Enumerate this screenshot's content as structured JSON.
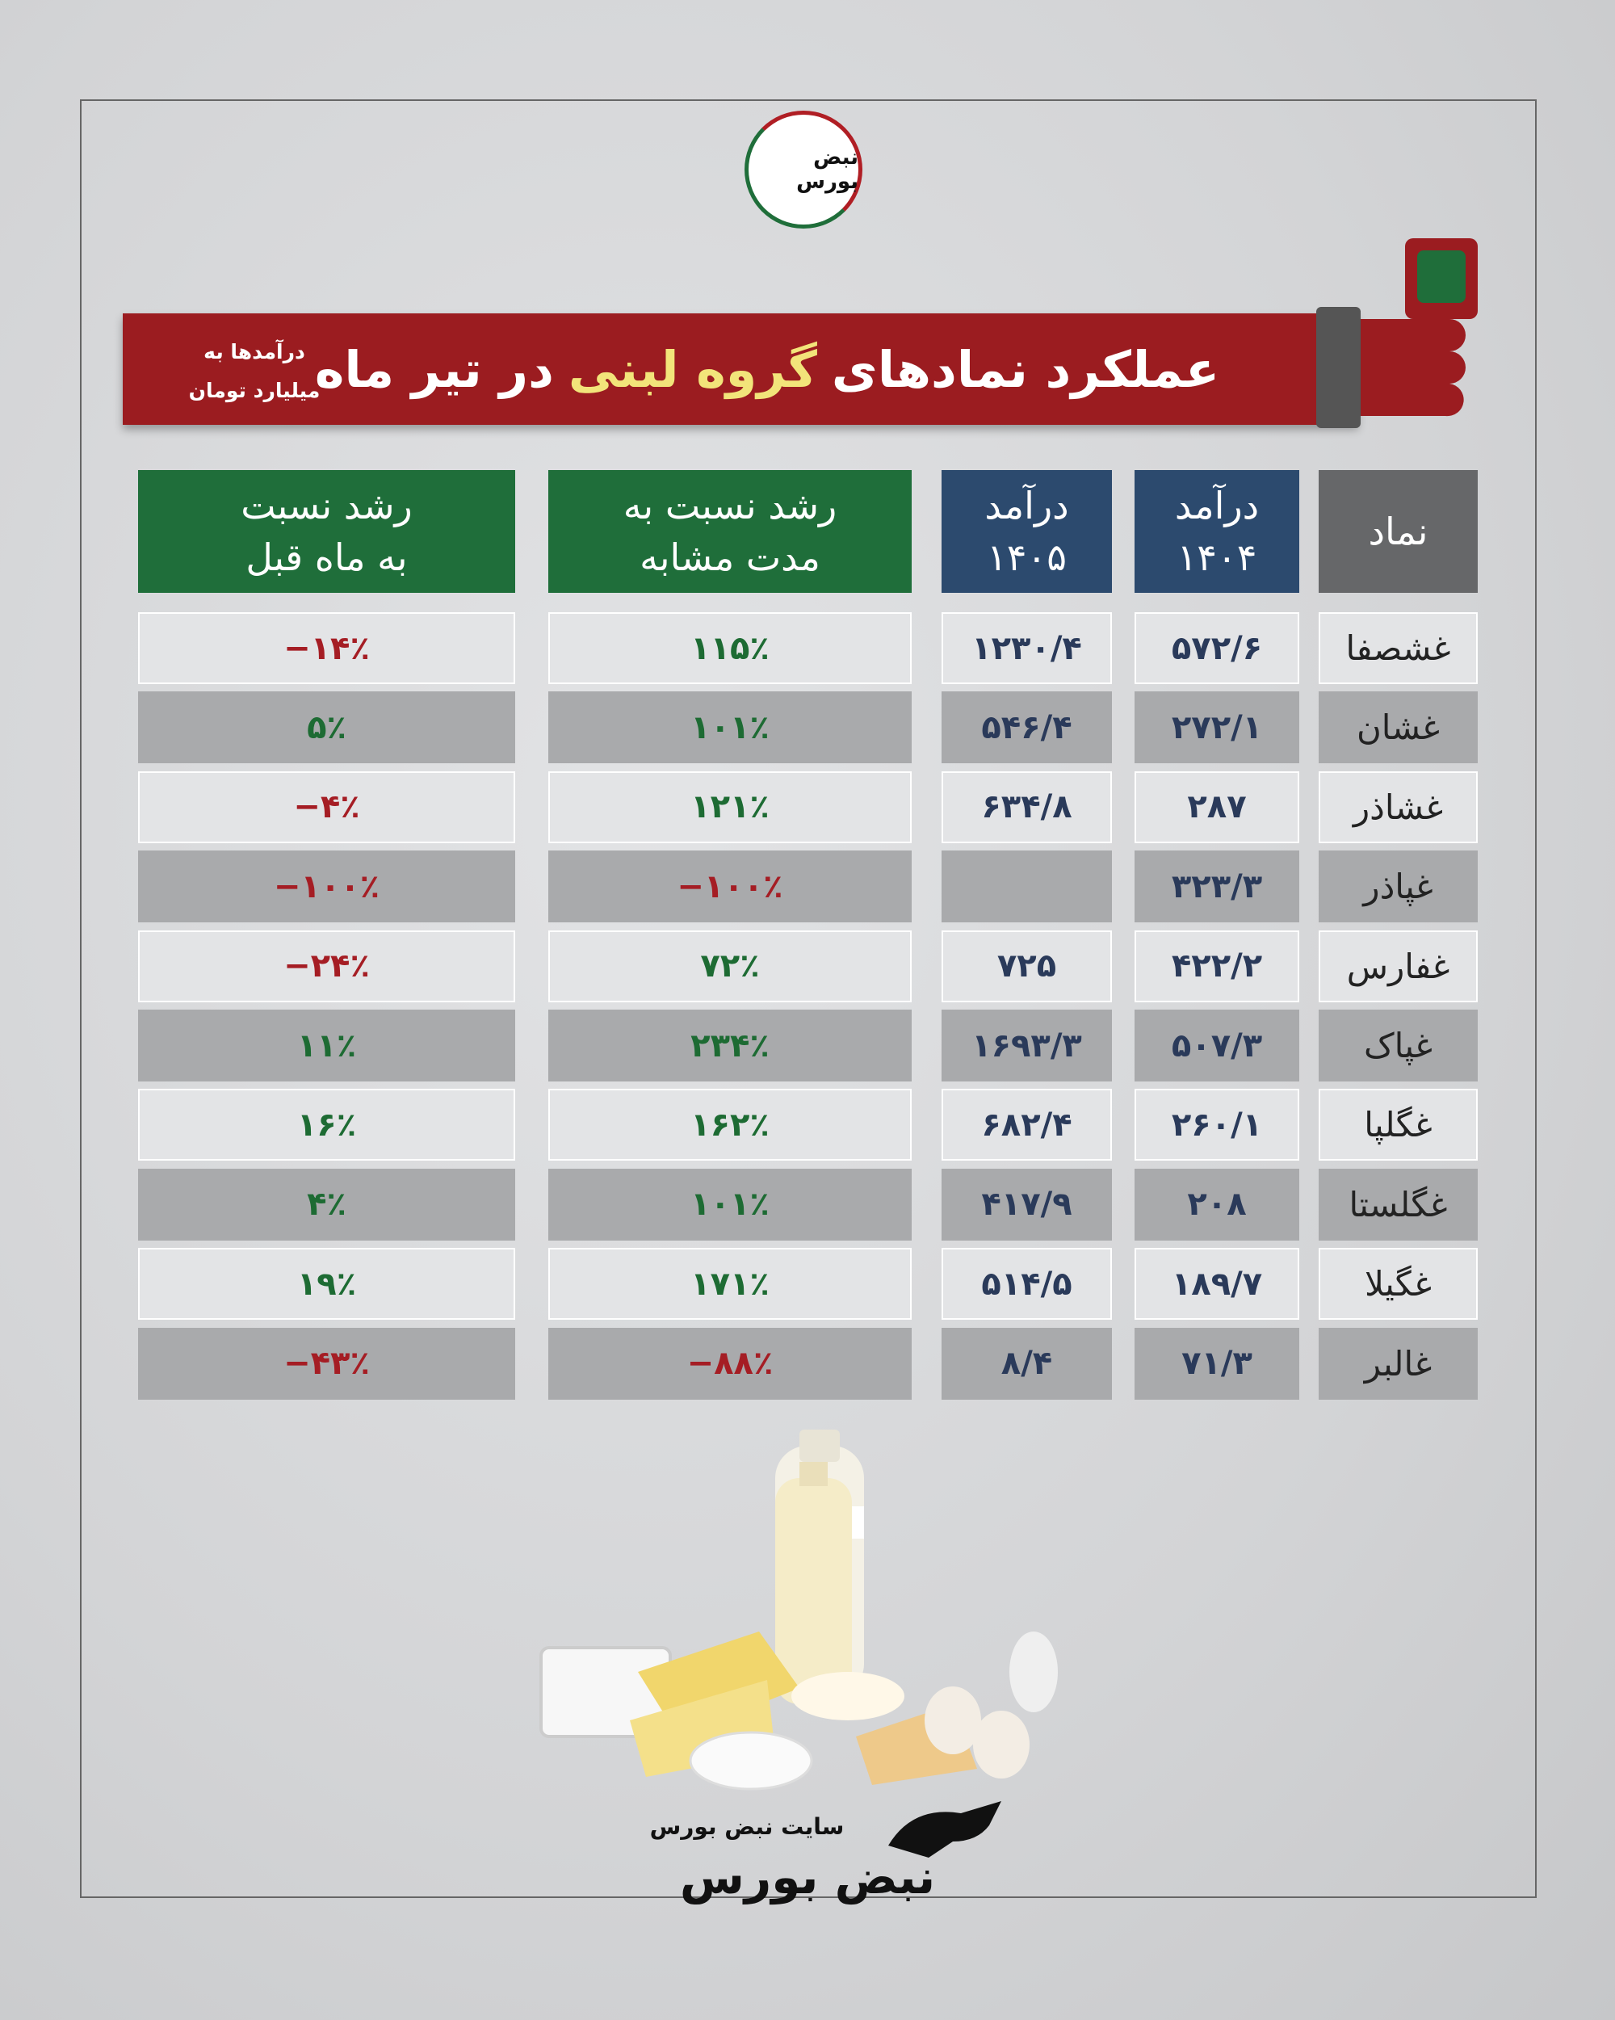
{
  "logo": {
    "text": "نبض بورس"
  },
  "header": {
    "title_start": "عملکرد نمادهای",
    "title_highlight": "گروه لبنی",
    "title_end": "در تیر ماه",
    "note": [
      "درآمدها به",
      "میلیارد تومان"
    ]
  },
  "table": {
    "columns": [
      [
        "نماد"
      ],
      [
        "درآمد",
        "۱۴۰۴"
      ],
      [
        "درآمد",
        "۱۴۰۵"
      ],
      [
        "رشد نسبت به",
        "مدت مشابه"
      ],
      [
        "رشد نسبت",
        "به ماه قبل"
      ]
    ],
    "rows": [
      [
        "غشصفا",
        "۵۷۲/۶",
        "۱۲۳۰/۴",
        "۱۱۵٪",
        "−۱۴٪"
      ],
      [
        "غشان",
        "۲۷۲/۱",
        "۵۴۶/۴",
        "۱۰۱٪",
        "۵٪"
      ],
      [
        "غشاذر",
        "۲۸۷",
        "۶۳۴/۸",
        "۱۲۱٪",
        "−۴٪"
      ],
      [
        "غپاذر",
        "۳۲۳/۳",
        null,
        "−۱۰۰٪",
        "−۱۰۰٪"
      ],
      [
        "غفارس",
        "۴۲۲/۲",
        "۷۲۵",
        "۷۲٪",
        "−۲۴٪"
      ],
      [
        "غپاک",
        "۵۰۷/۳",
        "۱۶۹۳/۳",
        "۲۳۴٪",
        "۱۱٪"
      ],
      [
        "غگلپا",
        "۲۶۰/۱",
        "۶۸۲/۴",
        "۱۶۲٪",
        "۱۶٪"
      ],
      [
        "غگلستا",
        "۲۰۸",
        "۴۱۷/۹",
        "۱۰۱٪",
        "۴٪"
      ],
      [
        "غگیلا",
        "۱۸۹/۷",
        "۵۱۴/۵",
        "۱۷۱٪",
        "۱۹٪"
      ],
      [
        "غالبر",
        "۷۱/۳",
        "۸/۴",
        "−۸۸٪",
        "−۴۳٪"
      ]
    ]
  },
  "footer": {
    "site": "سایت نبض بورس",
    "brand": "نبض بورس"
  }
}
